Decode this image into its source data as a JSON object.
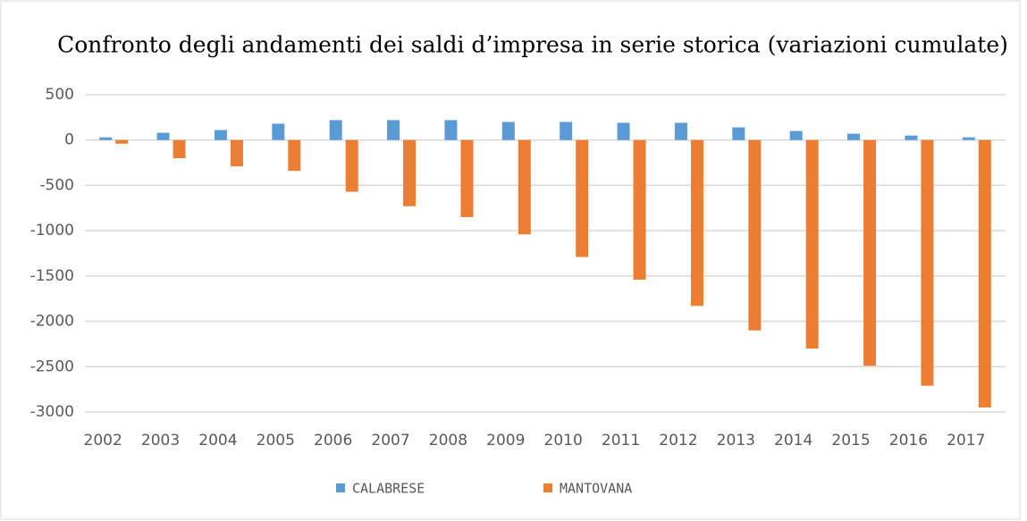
{
  "chart_data": {
    "type": "bar",
    "title": "Confronto degli andamenti dei saldi d’impresa in serie storica (variazioni cumulate)",
    "categories": [
      "2002",
      "2003",
      "2004",
      "2005",
      "2006",
      "2007",
      "2008",
      "2009",
      "2010",
      "2011",
      "2012",
      "2013",
      "2014",
      "2015",
      "2016",
      "2017"
    ],
    "series": [
      {
        "name": "CALABRESE",
        "color": "#5b9bd5",
        "values": [
          30,
          80,
          110,
          180,
          220,
          220,
          220,
          200,
          200,
          190,
          190,
          140,
          100,
          70,
          50,
          30
        ]
      },
      {
        "name": "MANTOVANA",
        "color": "#ed7d31",
        "values": [
          -40,
          -200,
          -290,
          -340,
          -570,
          -730,
          -850,
          -1040,
          -1290,
          -1540,
          -1830,
          -2100,
          -2300,
          -2490,
          -2710,
          -2950
        ]
      }
    ],
    "ylim": [
      -3000,
      500
    ],
    "yticks": [
      -3000,
      -2500,
      -2000,
      -1500,
      -1000,
      -500,
      0,
      500
    ],
    "grid": true,
    "legend": "bottom"
  }
}
